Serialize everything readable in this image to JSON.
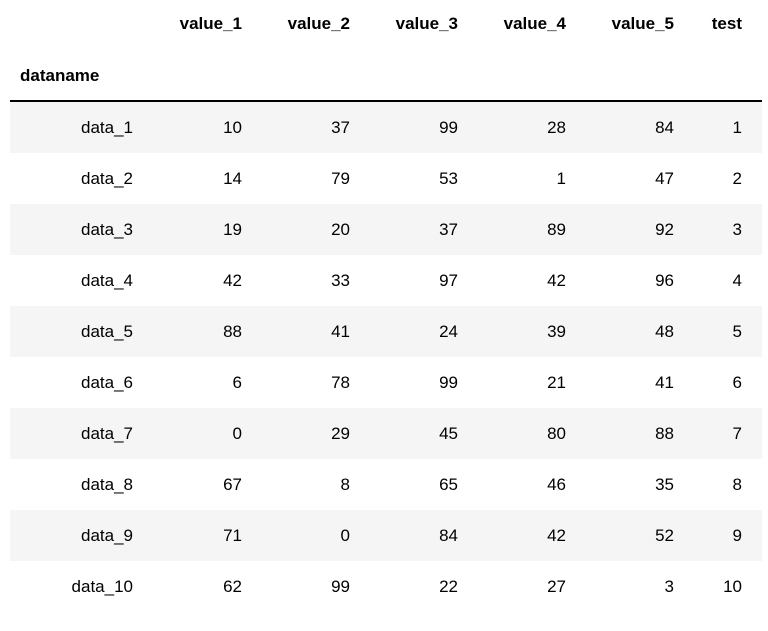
{
  "table": {
    "index_name": "dataname",
    "columns": [
      "value_1",
      "value_2",
      "value_3",
      "value_4",
      "value_5",
      "test"
    ],
    "rows": [
      {
        "index": "data_1",
        "values": [
          10,
          37,
          99,
          28,
          84,
          1
        ]
      },
      {
        "index": "data_2",
        "values": [
          14,
          79,
          53,
          1,
          47,
          2
        ]
      },
      {
        "index": "data_3",
        "values": [
          19,
          20,
          37,
          89,
          92,
          3
        ]
      },
      {
        "index": "data_4",
        "values": [
          42,
          33,
          97,
          42,
          96,
          4
        ]
      },
      {
        "index": "data_5",
        "values": [
          88,
          41,
          24,
          39,
          48,
          5
        ]
      },
      {
        "index": "data_6",
        "values": [
          6,
          78,
          99,
          21,
          41,
          6
        ]
      },
      {
        "index": "data_7",
        "values": [
          0,
          29,
          45,
          80,
          88,
          7
        ]
      },
      {
        "index": "data_8",
        "values": [
          67,
          8,
          65,
          46,
          35,
          8
        ]
      },
      {
        "index": "data_9",
        "values": [
          71,
          0,
          84,
          42,
          52,
          9
        ]
      },
      {
        "index": "data_10",
        "values": [
          62,
          99,
          22,
          27,
          3,
          10
        ]
      }
    ],
    "stripe_color": "#f5f5f5"
  }
}
